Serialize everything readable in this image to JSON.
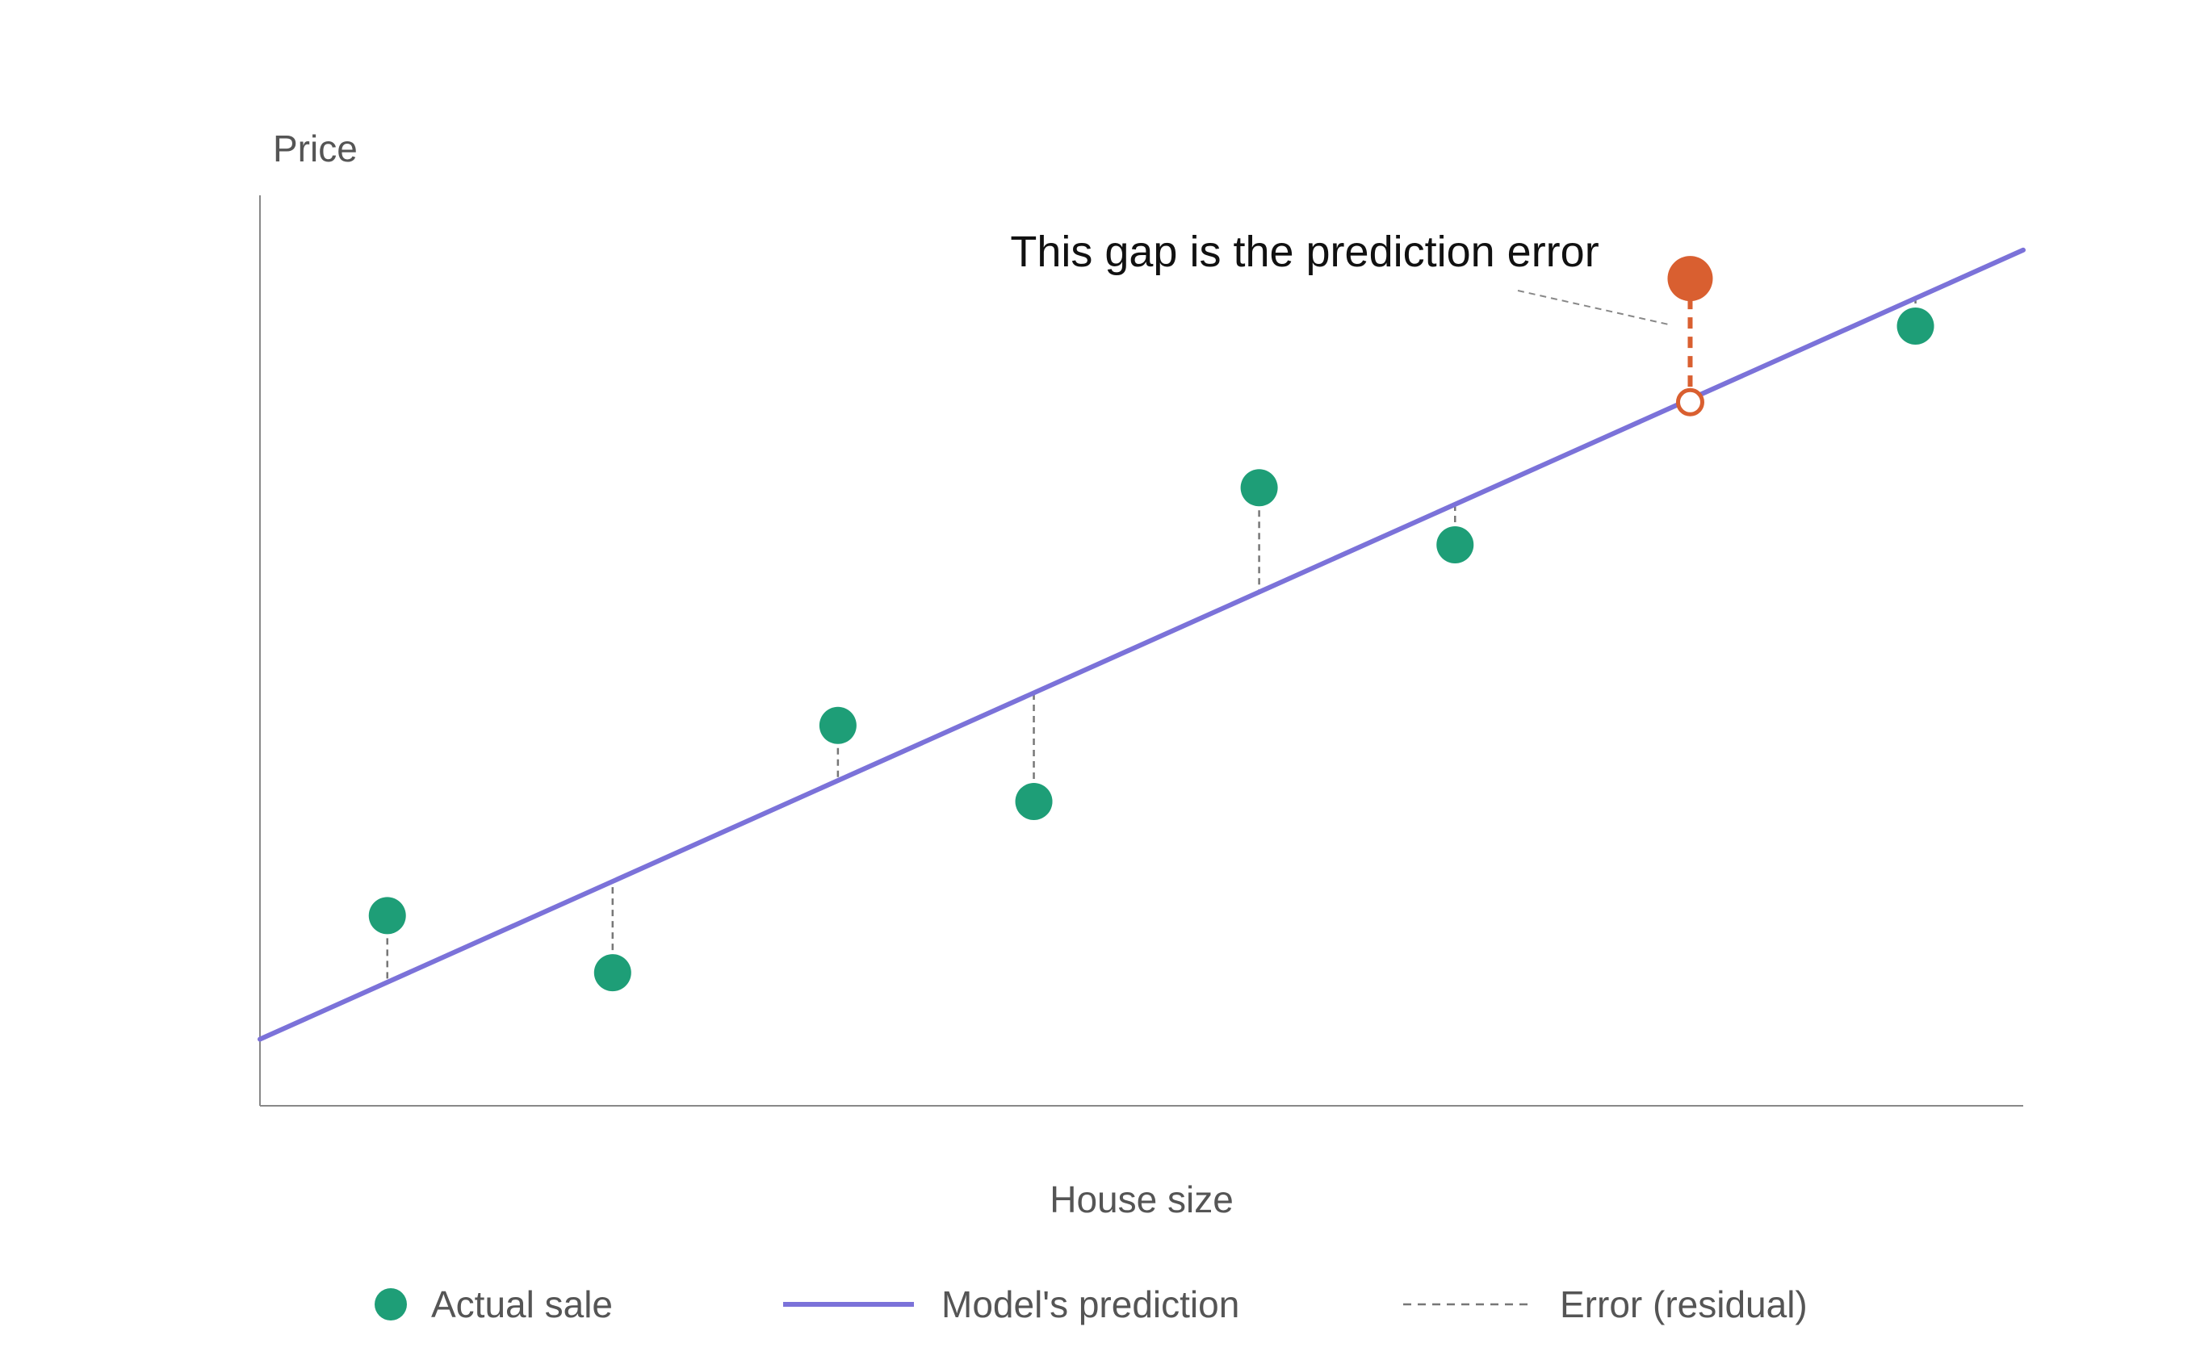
{
  "chart_data": {
    "type": "scatter",
    "title": "",
    "xlabel": "House size",
    "ylabel": "Price",
    "grid": false,
    "xlim": [
      0,
      9
    ],
    "ylim": [
      0,
      10
    ],
    "actual_sales": [
      {
        "x": 0.65,
        "y": 2.0
      },
      {
        "x": 1.8,
        "y": 1.4
      },
      {
        "x": 2.95,
        "y": 4.0
      },
      {
        "x": 3.95,
        "y": 3.2
      },
      {
        "x": 5.1,
        "y": 6.5
      },
      {
        "x": 6.1,
        "y": 5.9
      },
      {
        "x": 8.45,
        "y": 8.2
      }
    ],
    "highlighted_sale": {
      "x": 7.3,
      "y": 8.7,
      "predicted": 7.4
    },
    "prediction_line": {
      "x": [
        0,
        9
      ],
      "y": [
        0.7,
        9.0
      ]
    },
    "annotation": "This gap is the prediction error",
    "legend": [
      {
        "label": "Actual sale",
        "kind": "dot"
      },
      {
        "label": "Model's prediction",
        "kind": "line"
      },
      {
        "label": "Error (residual)",
        "kind": "dashed"
      }
    ],
    "legend_position": "bottom",
    "colors": {
      "actual": "#1e9e77",
      "prediction": "#7b72d9",
      "error": "#d95f30",
      "residual": "#777777",
      "axis": "#888888"
    }
  }
}
